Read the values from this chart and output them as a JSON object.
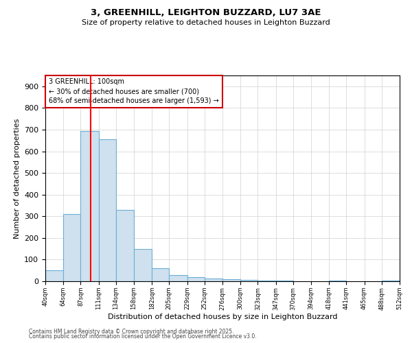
{
  "title": "3, GREENHILL, LEIGHTON BUZZARD, LU7 3AE",
  "subtitle": "Size of property relative to detached houses in Leighton Buzzard",
  "xlabel": "Distribution of detached houses by size in Leighton Buzzard",
  "ylabel": "Number of detached properties",
  "bar_color": "#cfe0ee",
  "bar_edge_color": "#6aaed6",
  "background_color": "#ffffff",
  "grid_color": "#d0d0d0",
  "red_line_x": 100,
  "annotation_text": "3 GREENHILL: 100sqm\n← 30% of detached houses are smaller (700)\n68% of semi-detached houses are larger (1,593) →",
  "annotation_box_color": "#ffffff",
  "annotation_box_edge_color": "#cc0000",
  "footer_line1": "Contains HM Land Registry data © Crown copyright and database right 2025.",
  "footer_line2": "Contains public sector information licensed under the Open Government Licence v3.0.",
  "ylim": [
    0,
    950
  ],
  "yticks": [
    0,
    100,
    200,
    300,
    400,
    500,
    600,
    700,
    800,
    900
  ],
  "bins": [
    40,
    64,
    87,
    111,
    134,
    158,
    182,
    205,
    229,
    252,
    276,
    300,
    323,
    347,
    370,
    394,
    418,
    441,
    465,
    488,
    512
  ],
  "counts": [
    52,
    310,
    695,
    655,
    330,
    148,
    60,
    30,
    18,
    14,
    8,
    5,
    4,
    3,
    0,
    0,
    2,
    0,
    0,
    2
  ]
}
